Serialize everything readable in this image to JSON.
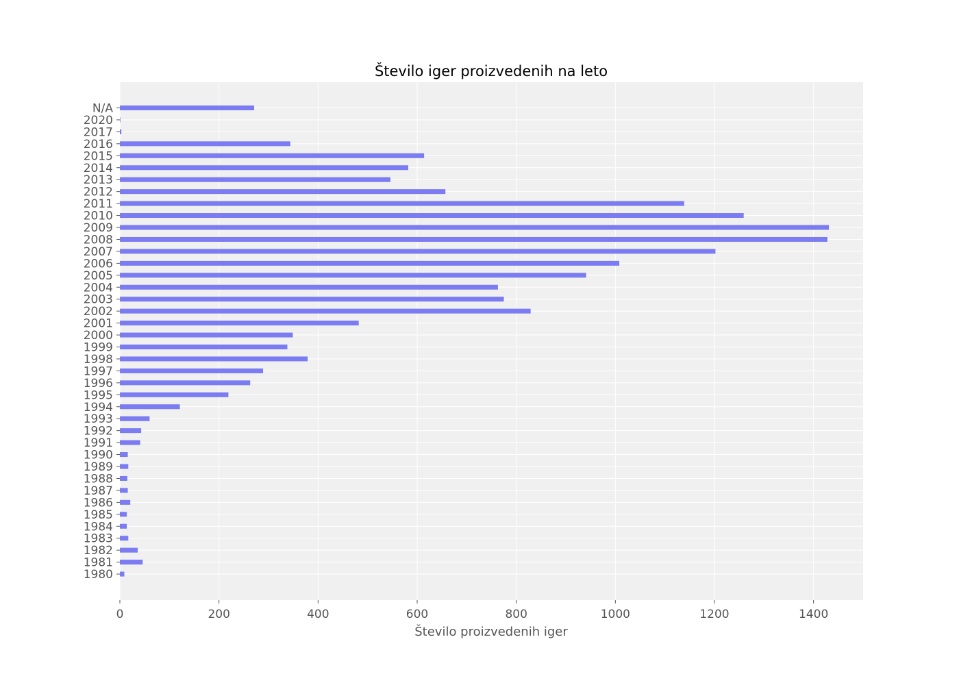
{
  "chart_data": {
    "type": "bar",
    "orientation": "horizontal",
    "title": "Število iger proizvedenih na leto",
    "xlabel": "Število proizvedenih iger",
    "ylabel": "",
    "xlim": [
      0,
      1500
    ],
    "xticks": [
      0,
      200,
      400,
      600,
      800,
      1000,
      1200,
      1400
    ],
    "grid": true,
    "bar_color": "#7b7bf2",
    "plot_background": "#f0f0f0",
    "grid_color": "#ffffff",
    "categories": [
      "1980",
      "1981",
      "1982",
      "1983",
      "1984",
      "1985",
      "1986",
      "1987",
      "1988",
      "1989",
      "1990",
      "1991",
      "1992",
      "1993",
      "1994",
      "1995",
      "1996",
      "1997",
      "1998",
      "1999",
      "2000",
      "2001",
      "2002",
      "2003",
      "2004",
      "2005",
      "2006",
      "2007",
      "2008",
      "2009",
      "2010",
      "2011",
      "2012",
      "2013",
      "2014",
      "2015",
      "2016",
      "2017",
      "2020",
      "N/A"
    ],
    "values": [
      9,
      46,
      36,
      17,
      14,
      14,
      21,
      16,
      15,
      17,
      16,
      41,
      43,
      60,
      121,
      219,
      263,
      289,
      379,
      338,
      349,
      482,
      829,
      775,
      763,
      941,
      1008,
      1202,
      1428,
      1431,
      1259,
      1139,
      657,
      546,
      582,
      614,
      344,
      3,
      1,
      271
    ]
  }
}
